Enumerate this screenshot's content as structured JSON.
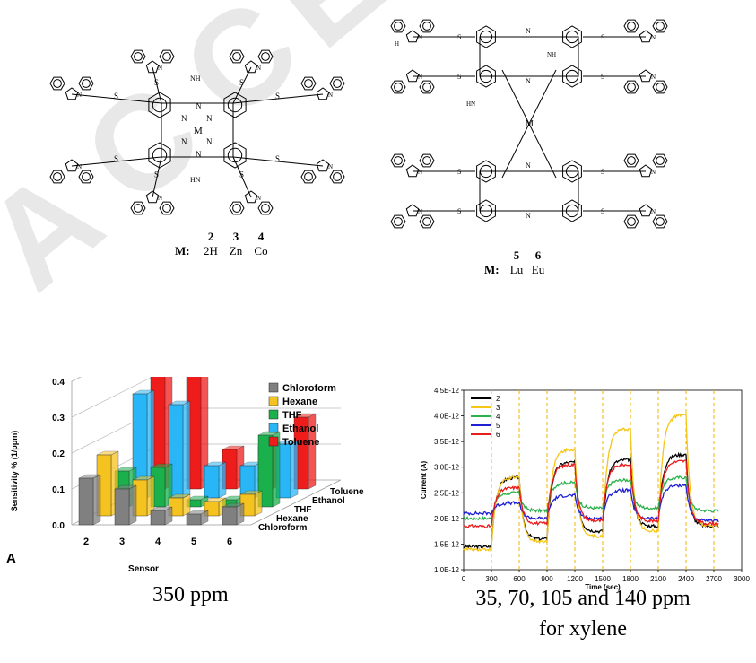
{
  "watermark": "ACCEPTED",
  "structure_left": {
    "compound_numbers": [
      "2",
      "3",
      "4"
    ],
    "m_label": "M:",
    "metals": [
      "2H",
      "Zn",
      "Co"
    ],
    "atom_labels": {
      "M": "M",
      "N": "N",
      "S": "S",
      "NH": "NH",
      "HN": "HN",
      "H": "H"
    }
  },
  "structure_right": {
    "compound_numbers": [
      "5",
      "6"
    ],
    "m_label": "M:",
    "metals": [
      "Lu",
      "Eu"
    ],
    "atom_labels": {
      "M": "M",
      "N": "N",
      "S": "S",
      "NH": "NH",
      "HN": "HN",
      "H": "H"
    }
  },
  "chart_data": [
    {
      "type": "bar",
      "panel_label": "A",
      "title": "",
      "xlabel": "Sensor",
      "ylabel": "Sensitivity % (1/ppm)",
      "categories": [
        "2",
        "3",
        "4",
        "5",
        "6"
      ],
      "depth_labels": [
        "Toluene",
        "Ethanol",
        "THF",
        "Hexane",
        "Chloroform"
      ],
      "ylim": [
        0,
        0.4
      ],
      "yticks": [
        "0.0",
        "0.1",
        "0.2",
        "0.3",
        "0.4"
      ],
      "legend_position": "top-right",
      "series": [
        {
          "name": "Chloroform",
          "color": "#808080",
          "values": [
            0.13,
            0.1,
            0.04,
            0.03,
            0.05
          ]
        },
        {
          "name": "Hexane",
          "color": "#f5c320",
          "values": [
            0.17,
            0.1,
            0.05,
            0.04,
            0.06
          ]
        },
        {
          "name": "THF",
          "color": "#1ab04c",
          "values": [
            0.1,
            0.11,
            0.02,
            0.02,
            0.2
          ]
        },
        {
          "name": "Ethanol",
          "color": "#29b6f6",
          "values": [
            0.29,
            0.26,
            0.09,
            0.09,
            0.15
          ]
        },
        {
          "name": "Toluene",
          "color": "#ef1c1c",
          "values": [
            0.37,
            0.35,
            0.11,
            0.12,
            0.2
          ]
        }
      ],
      "caption": "350 ppm"
    },
    {
      "type": "line",
      "title": "",
      "xlabel": "Time (sec)",
      "ylabel": "Current (A)",
      "xlim": [
        0,
        3000
      ],
      "ylim": [
        1e-12,
        4.5e-12
      ],
      "xticks": [
        "0",
        "300",
        "600",
        "900",
        "1200",
        "1500",
        "1800",
        "2100",
        "2400",
        "2700",
        "3000"
      ],
      "yticks": [
        "1.0E-12",
        "1.5E-12",
        "2.0E-12",
        "2.5E-12",
        "3.0E-12",
        "3.5E-12",
        "4.0E-12",
        "4.5E-12"
      ],
      "vlines": [
        300,
        600,
        900,
        1200,
        1500,
        1800,
        2100,
        2400,
        2700
      ],
      "vline_color": "#f0b400",
      "legend_position": "top-left",
      "on_windows": [
        [
          300,
          600
        ],
        [
          900,
          1200
        ],
        [
          1500,
          1800
        ],
        [
          2100,
          2400
        ]
      ],
      "series": [
        {
          "name": "2",
          "color": "#000000",
          "baseline": [
            1.45e-12,
            1.6e-12,
            1.75e-12,
            1.85e-12,
            1.85e-12
          ],
          "peak": [
            2.8e-12,
            3.1e-12,
            3.15e-12,
            3.25e-12
          ]
        },
        {
          "name": "3",
          "color": "#f5c518",
          "baseline": [
            1.4e-12,
            1.55e-12,
            1.65e-12,
            1.75e-12,
            1.85e-12
          ],
          "peak": [
            2.8e-12,
            3.35e-12,
            3.75e-12,
            4.02e-12
          ]
        },
        {
          "name": "4",
          "color": "#2bb24c",
          "baseline": [
            2e-12,
            2.15e-12,
            2.2e-12,
            2.2e-12,
            2.15e-12
          ],
          "peak": [
            2.5e-12,
            2.7e-12,
            2.75e-12,
            2.8e-12
          ]
        },
        {
          "name": "5",
          "color": "#1f1fd6",
          "baseline": [
            2.1e-12,
            2e-12,
            2e-12,
            2e-12,
            1.95e-12
          ],
          "peak": [
            2.3e-12,
            2.45e-12,
            2.55e-12,
            2.65e-12
          ]
        },
        {
          "name": "6",
          "color": "#e81c1c",
          "baseline": [
            1.85e-12,
            1.9e-12,
            1.95e-12,
            1.95e-12,
            1.9e-12
          ],
          "peak": [
            2.6e-12,
            3.05e-12,
            3.05e-12,
            3.12e-12
          ]
        }
      ],
      "caption_lines": [
        "35, 70, 105 and 140 ppm",
        "for xylene"
      ]
    }
  ]
}
